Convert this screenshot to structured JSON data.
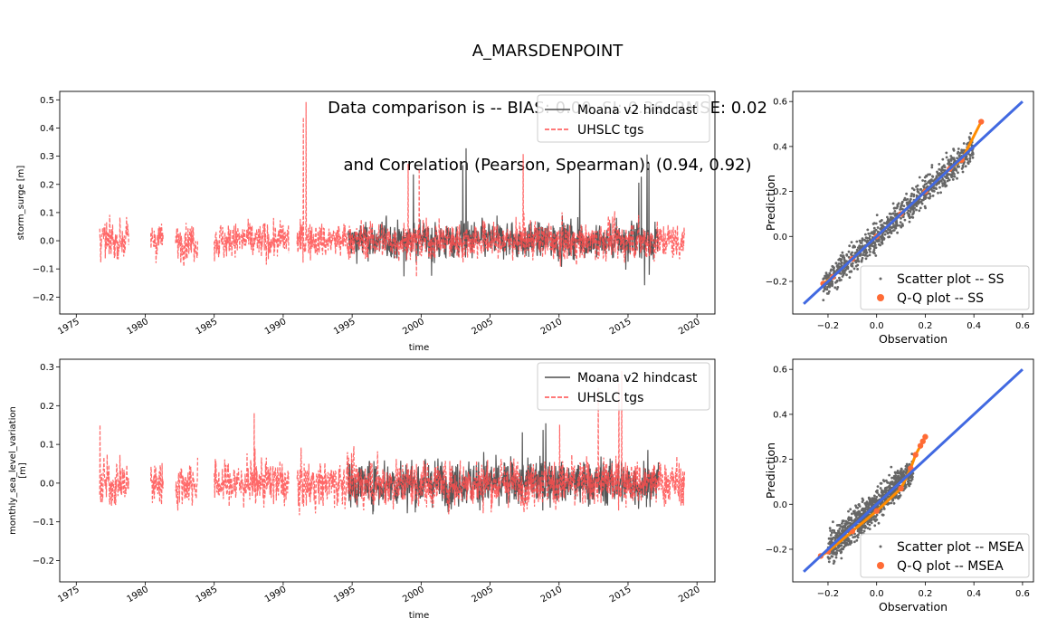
{
  "figure": {
    "title_lines": [
      "A_MARSDENPOINT",
      "Data comparison is -- BIAS: 0.00, SI: 0.36, RMSE: 0.02",
      "and Correlation (Pearson, Spearman): (0.94, 0.92)"
    ]
  },
  "colors": {
    "model": "#4d4d4d",
    "obs": "#ff4d4d",
    "overlap": "#c81414",
    "scatter": "#666666",
    "qq": "#ff6b35",
    "qq_line": "#ff8c00",
    "identity": "#4169e1"
  },
  "chart_data": [
    {
      "type": "line",
      "panel": "top-left",
      "xlabel": "time",
      "ylabel": "storm_surge [m]",
      "xlim": [
        1973.8,
        2021.3
      ],
      "ylim": [
        -0.26,
        0.53
      ],
      "xticks": [
        1975,
        1980,
        1985,
        1990,
        1995,
        2000,
        2005,
        2010,
        2015,
        2020
      ],
      "yticks": [
        -0.2,
        -0.1,
        0.0,
        0.1,
        0.2,
        0.3,
        0.4,
        0.5
      ],
      "ytick_labels": [
        "−0.2",
        "−0.1",
        "0.0",
        "0.1",
        "0.2",
        "0.3",
        "0.4",
        "0.5"
      ],
      "legend": "top-right",
      "series": [
        {
          "name": "Moana v2 hindcast",
          "style": "solid",
          "segments": [
            [
              1994.7,
              2017.2
            ]
          ],
          "noise": 0.055,
          "peak": 0.38
        },
        {
          "name": "UHSLC tgs",
          "style": "dashed",
          "segments": [
            [
              1976.7,
              1978.8
            ],
            [
              1980.4,
              1981.3
            ],
            [
              1982.2,
              1983.8
            ],
            [
              1985.0,
              1990.4
            ],
            [
              1991.0,
              2019.1
            ]
          ],
          "noise": 0.055,
          "peak": 0.51
        }
      ]
    },
    {
      "type": "line",
      "panel": "bottom-left",
      "xlabel": "time",
      "ylabel": "monthly_sea_level_variation [m]",
      "ylabel_lines": [
        "monthly_sea_level_variation",
        "[m]"
      ],
      "xlim": [
        1973.8,
        2021.3
      ],
      "ylim": [
        -0.255,
        0.32
      ],
      "xticks": [
        1975,
        1980,
        1985,
        1990,
        1995,
        2000,
        2005,
        2010,
        2015,
        2020
      ],
      "yticks": [
        -0.2,
        -0.1,
        0.0,
        0.1,
        0.2,
        0.3
      ],
      "ytick_labels": [
        "−0.2",
        "−0.1",
        "0.0",
        "0.1",
        "0.2",
        "0.3"
      ],
      "legend": "top-right",
      "series": [
        {
          "name": "Moana v2 hindcast",
          "style": "solid",
          "segments": [
            [
              1994.7,
              2017.2
            ]
          ],
          "noise": 0.05,
          "peak": 0.16
        },
        {
          "name": "UHSLC tgs",
          "style": "dashed",
          "segments": [
            [
              1976.7,
              1978.8
            ],
            [
              1980.4,
              1981.3
            ],
            [
              1982.2,
              1983.8
            ],
            [
              1985.0,
              1990.4
            ],
            [
              1991.0,
              2019.1
            ]
          ],
          "noise": 0.05,
          "peak": 0.3
        }
      ]
    },
    {
      "type": "scatter",
      "panel": "top-right",
      "xlabel": "Observation",
      "ylabel": "Prediction",
      "xlim": [
        -0.345,
        0.645
      ],
      "ylim": [
        -0.345,
        0.645
      ],
      "xticks": [
        -0.2,
        0.0,
        0.2,
        0.4,
        0.6
      ],
      "xtick_labels": [
        "−0.2",
        "0.0",
        "0.2",
        "0.4",
        "0.6"
      ],
      "yticks": [
        -0.2,
        0.0,
        0.2,
        0.4,
        0.6
      ],
      "ytick_labels": [
        "−0.2",
        "0.0",
        "0.2",
        "0.4",
        "0.6"
      ],
      "identity_line": [
        [
          -0.3,
          -0.3
        ],
        [
          0.6,
          0.6
        ]
      ],
      "legend": "bottom-right",
      "series": [
        {
          "name": "Scatter plot -- SS",
          "marker": "small-dot",
          "spread": 0.045,
          "range": [
            -0.22,
            0.4
          ]
        },
        {
          "name": "Q-Q plot -- SS",
          "marker": "circle",
          "points": [
            [
              -0.22,
              -0.21
            ],
            [
              -0.18,
              -0.18
            ],
            [
              -0.1,
              -0.1
            ],
            [
              0.0,
              0.0
            ],
            [
              0.1,
              0.1
            ],
            [
              0.2,
              0.2
            ],
            [
              0.3,
              0.3
            ],
            [
              0.35,
              0.34
            ],
            [
              0.43,
              0.51
            ]
          ]
        }
      ]
    },
    {
      "type": "scatter",
      "panel": "bottom-right",
      "xlabel": "Observation",
      "ylabel": "Prediction",
      "xlim": [
        -0.345,
        0.645
      ],
      "ylim": [
        -0.345,
        0.645
      ],
      "xticks": [
        -0.2,
        0.0,
        0.2,
        0.4,
        0.6
      ],
      "xtick_labels": [
        "−0.2",
        "0.0",
        "0.2",
        "0.4",
        "0.6"
      ],
      "yticks": [
        -0.2,
        0.0,
        0.2,
        0.4,
        0.6
      ],
      "ytick_labels": [
        "−0.2",
        "0.0",
        "0.2",
        "0.4",
        "0.6"
      ],
      "identity_line": [
        [
          -0.3,
          -0.3
        ],
        [
          0.6,
          0.6
        ]
      ],
      "legend": "bottom-right",
      "series": [
        {
          "name": "Scatter plot -- MSEA",
          "marker": "small-dot",
          "spread": 0.05,
          "range": [
            -0.2,
            0.15
          ]
        },
        {
          "name": "Q-Q plot -- MSEA",
          "marker": "circle",
          "points": [
            [
              -0.23,
              -0.23
            ],
            [
              -0.2,
              -0.21
            ],
            [
              -0.1,
              -0.12
            ],
            [
              0.0,
              -0.03
            ],
            [
              0.1,
              0.07
            ],
            [
              0.14,
              0.16
            ],
            [
              0.16,
              0.22
            ],
            [
              0.18,
              0.26
            ],
            [
              0.19,
              0.28
            ],
            [
              0.2,
              0.3
            ]
          ]
        }
      ]
    }
  ]
}
